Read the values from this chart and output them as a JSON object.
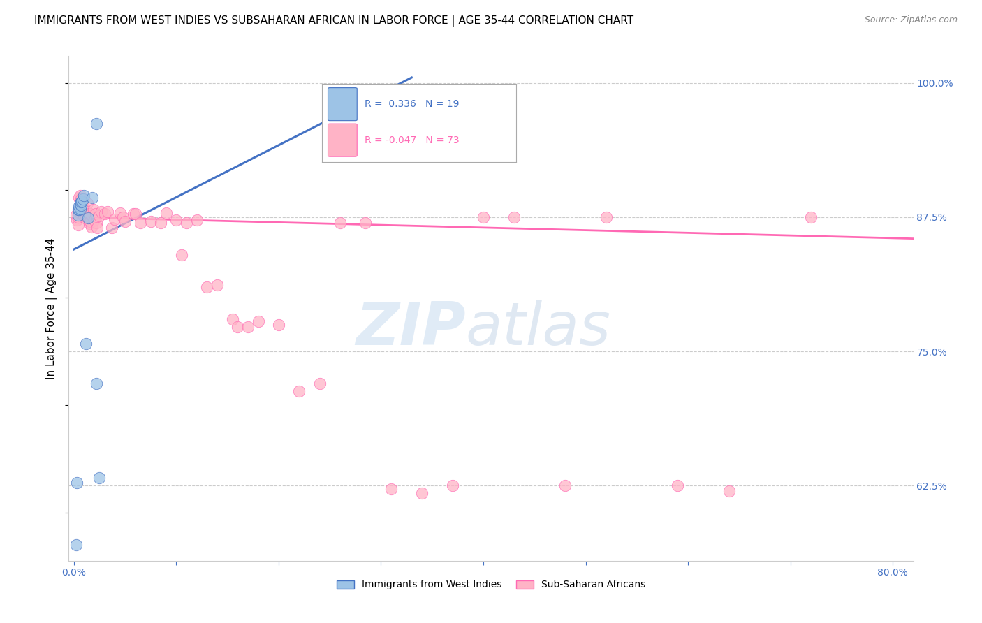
{
  "title": "IMMIGRANTS FROM WEST INDIES VS SUBSAHARAN AFRICAN IN LABOR FORCE | AGE 35-44 CORRELATION CHART",
  "source": "Source: ZipAtlas.com",
  "ylabel": "In Labor Force | Age 35-44",
  "xlim_min": -0.005,
  "xlim_max": 0.82,
  "ylim_min": 0.555,
  "ylim_max": 1.025,
  "xticks": [
    0.0,
    0.1,
    0.2,
    0.3,
    0.4,
    0.5,
    0.6,
    0.7,
    0.8
  ],
  "xticklabels": [
    "0.0%",
    "",
    "",
    "",
    "",
    "",
    "",
    "",
    "80.0%"
  ],
  "yticks": [
    0.625,
    0.75,
    0.875,
    1.0
  ],
  "yticklabels": [
    "62.5%",
    "75.0%",
    "87.5%",
    "100.0%"
  ],
  "west_indies_R": 0.336,
  "west_indies_N": 19,
  "subsaharan_R": -0.047,
  "subsaharan_N": 73,
  "west_indies_color": "#9DC3E6",
  "subsaharan_color": "#FFB3C6",
  "west_indies_line_color": "#4472C4",
  "subsaharan_line_color": "#FF69B4",
  "tick_color": "#4472C4",
  "grid_color": "#CCCCCC",
  "west_indies_line_x0": 0.0,
  "west_indies_line_y0": 0.845,
  "west_indies_line_x1": 0.33,
  "west_indies_line_y1": 1.005,
  "subsaharan_line_x0": 0.0,
  "subsaharan_line_y0": 0.875,
  "subsaharan_line_x1": 0.82,
  "subsaharan_line_y1": 0.855,
  "wi_x": [
    0.002,
    0.003,
    0.004,
    0.004,
    0.005,
    0.005,
    0.006,
    0.006,
    0.007,
    0.007,
    0.008,
    0.009,
    0.01,
    0.012,
    0.014,
    0.018,
    0.022,
    0.022,
    0.025
  ],
  "wi_y": [
    0.57,
    0.628,
    0.877,
    0.882,
    0.882,
    0.885,
    0.883,
    0.887,
    0.886,
    0.889,
    0.89,
    0.892,
    0.895,
    0.757,
    0.874,
    0.893,
    0.962,
    0.72,
    0.632
  ],
  "ss_x": [
    0.002,
    0.003,
    0.004,
    0.004,
    0.005,
    0.005,
    0.006,
    0.006,
    0.006,
    0.007,
    0.007,
    0.008,
    0.008,
    0.009,
    0.009,
    0.01,
    0.01,
    0.011,
    0.011,
    0.012,
    0.013,
    0.013,
    0.014,
    0.015,
    0.015,
    0.016,
    0.017,
    0.018,
    0.019,
    0.02,
    0.021,
    0.022,
    0.023,
    0.025,
    0.027,
    0.03,
    0.033,
    0.037,
    0.04,
    0.045,
    0.048,
    0.05,
    0.058,
    0.06,
    0.065,
    0.075,
    0.085,
    0.09,
    0.1,
    0.105,
    0.11,
    0.12,
    0.13,
    0.14,
    0.155,
    0.16,
    0.17,
    0.18,
    0.2,
    0.22,
    0.24,
    0.26,
    0.285,
    0.31,
    0.34,
    0.37,
    0.4,
    0.43,
    0.48,
    0.52,
    0.59,
    0.64,
    0.72
  ],
  "ss_y": [
    0.877,
    0.872,
    0.868,
    0.875,
    0.893,
    0.882,
    0.895,
    0.886,
    0.879,
    0.892,
    0.882,
    0.888,
    0.884,
    0.885,
    0.878,
    0.876,
    0.882,
    0.874,
    0.88,
    0.876,
    0.888,
    0.88,
    0.876,
    0.869,
    0.878,
    0.871,
    0.866,
    0.876,
    0.882,
    0.872,
    0.878,
    0.87,
    0.865,
    0.876,
    0.88,
    0.878,
    0.88,
    0.865,
    0.873,
    0.879,
    0.875,
    0.871,
    0.878,
    0.878,
    0.87,
    0.871,
    0.87,
    0.879,
    0.872,
    0.84,
    0.87,
    0.872,
    0.81,
    0.812,
    0.78,
    0.773,
    0.773,
    0.778,
    0.775,
    0.713,
    0.72,
    0.87,
    0.87,
    0.622,
    0.618,
    0.625,
    0.875,
    0.875,
    0.625,
    0.875,
    0.625,
    0.62,
    0.875
  ]
}
